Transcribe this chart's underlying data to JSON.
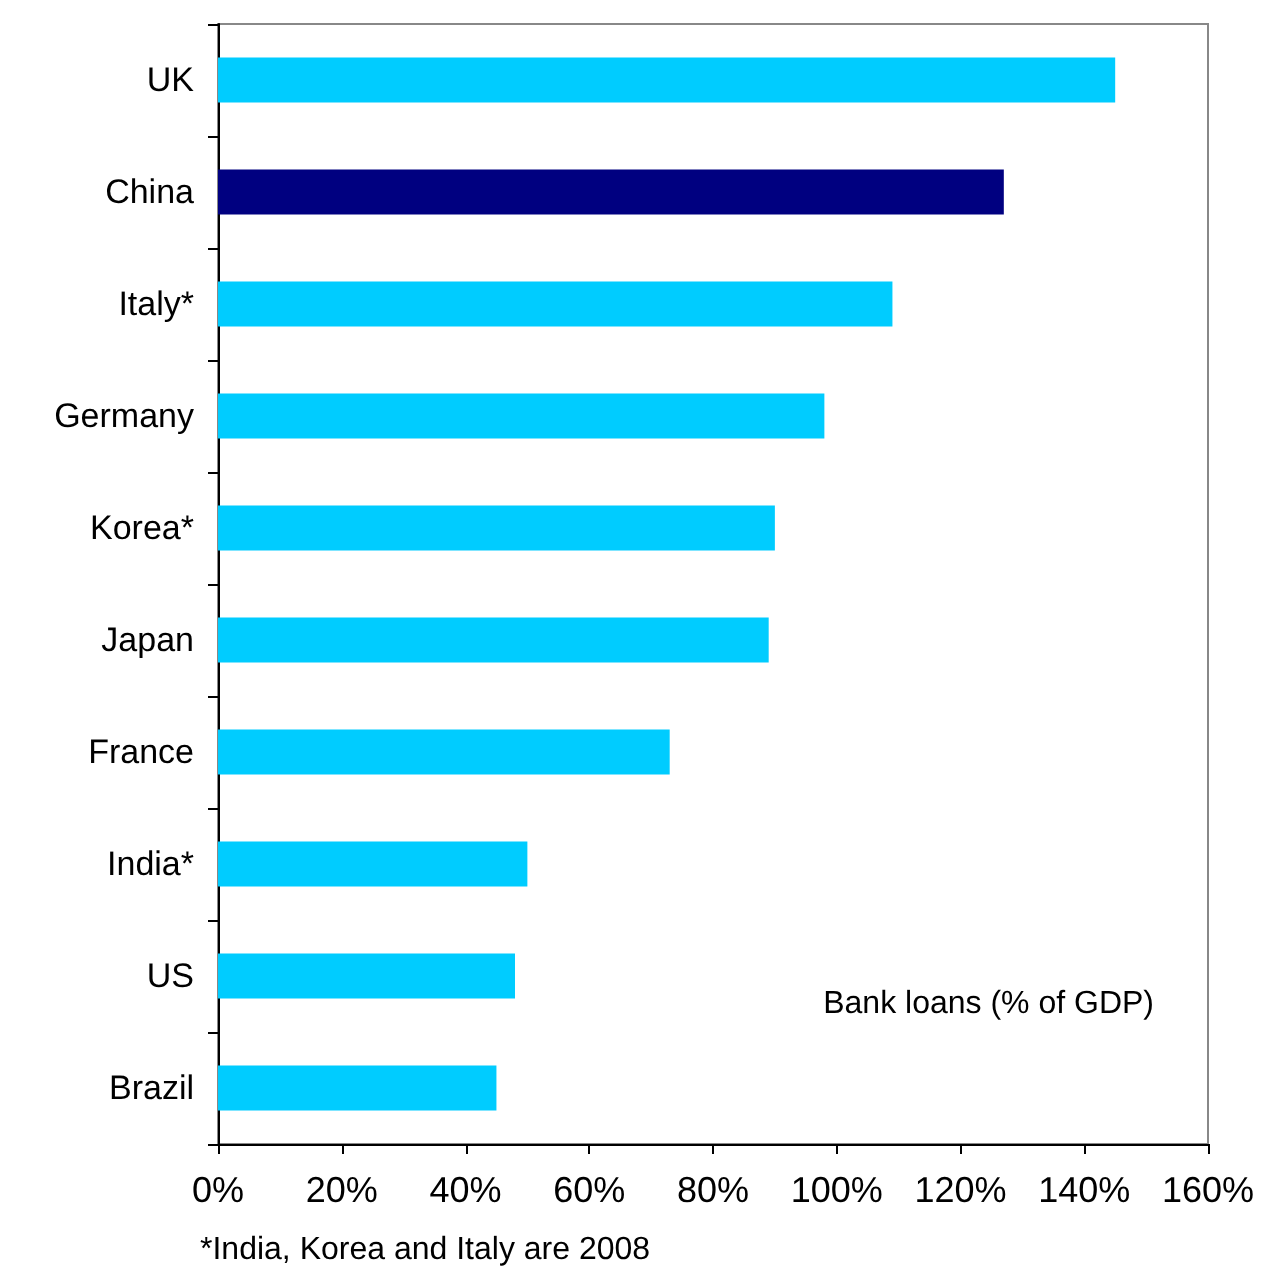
{
  "chart_data": {
    "type": "bar",
    "orientation": "horizontal",
    "categories": [
      "UK",
      "China",
      "Italy*",
      "Germany",
      "Korea*",
      "Japan",
      "France",
      "India*",
      "US",
      "Brazil"
    ],
    "values": [
      145,
      127,
      109,
      98,
      90,
      89,
      73,
      50,
      48,
      45
    ],
    "colors": [
      "#00ccff",
      "#000080",
      "#00ccff",
      "#00ccff",
      "#00ccff",
      "#00ccff",
      "#00ccff",
      "#00ccff",
      "#00ccff",
      "#00ccff"
    ],
    "xlim": [
      0,
      160
    ],
    "xticks": [
      {
        "value": 0,
        "label": "0%"
      },
      {
        "value": 20,
        "label": "20%"
      },
      {
        "value": 40,
        "label": "40%"
      },
      {
        "value": 60,
        "label": "60%"
      },
      {
        "value": 80,
        "label": "80%"
      },
      {
        "value": 100,
        "label": "100%"
      },
      {
        "value": 120,
        "label": "120%"
      },
      {
        "value": 140,
        "label": "140%"
      },
      {
        "value": 160,
        "label": "160%"
      }
    ],
    "grid": false,
    "annotations": [
      "Bank loans (% of GDP)",
      "*India, Korea and Italy are 2008"
    ]
  }
}
